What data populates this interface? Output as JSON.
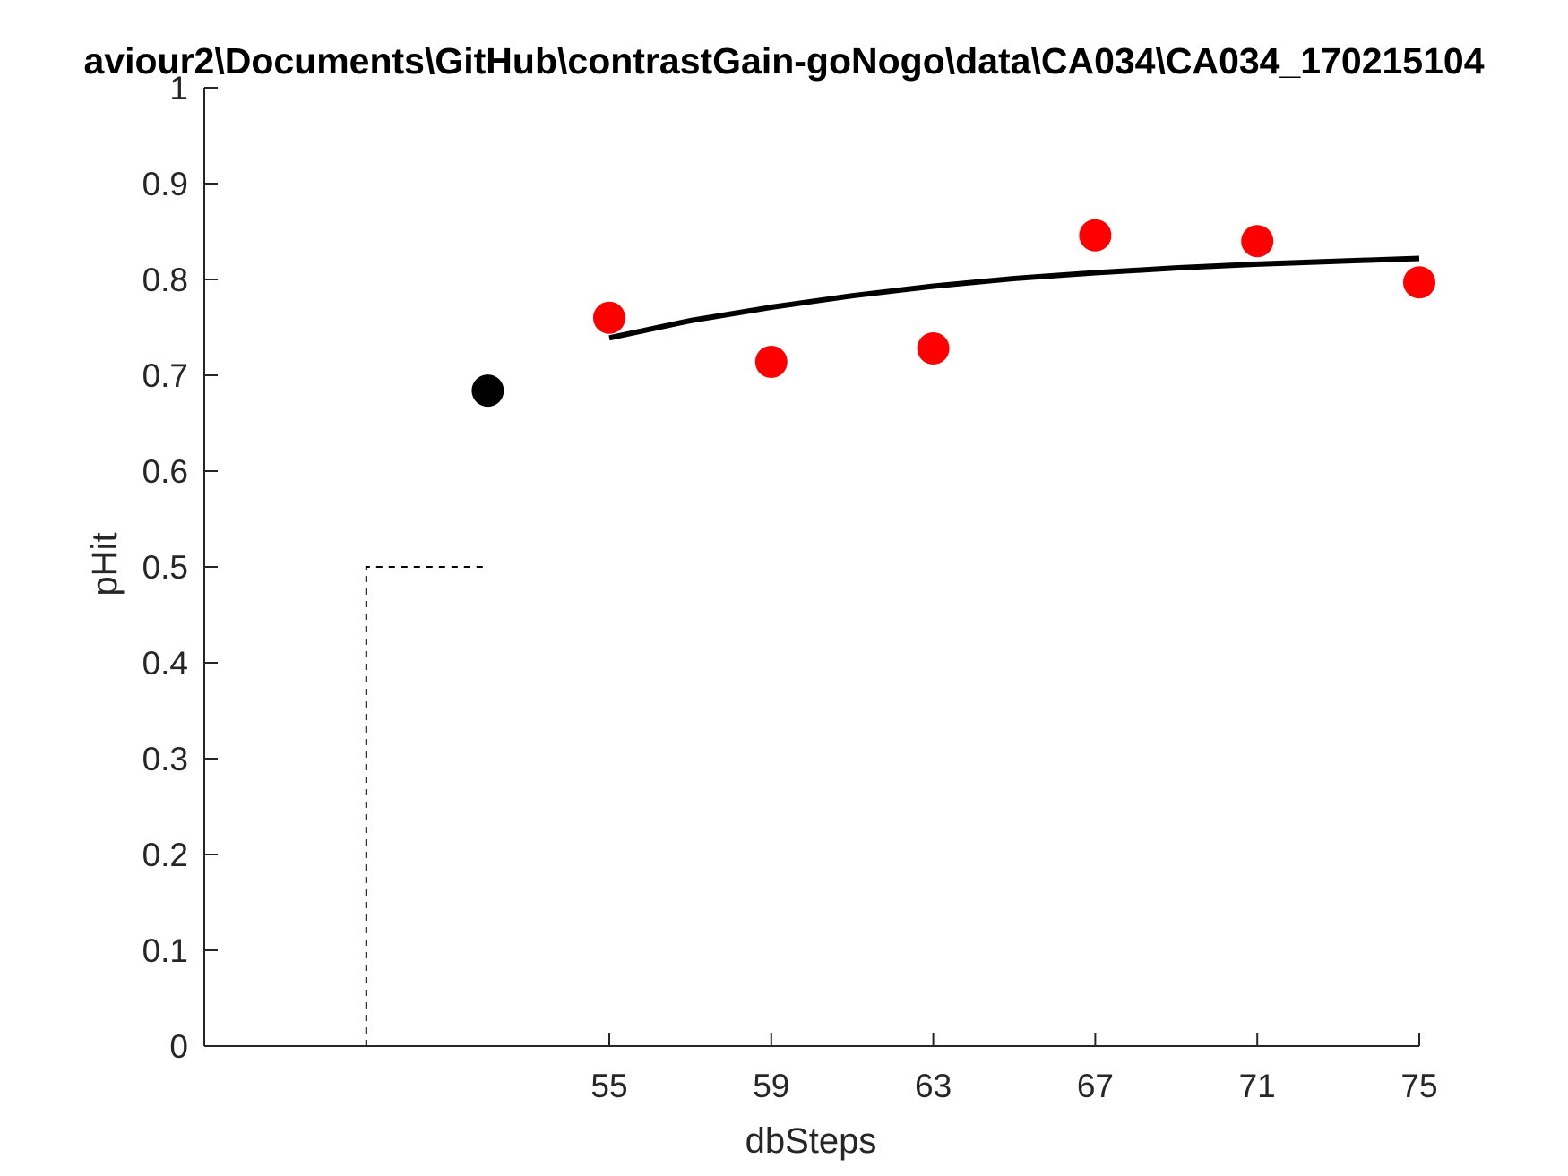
{
  "chart_data": {
    "type": "scatter",
    "title": "aviour2\\Documents\\GitHub\\contrastGain-goNogo\\data\\CA034\\CA034_170215104",
    "xlabel": "dbSteps",
    "ylabel": "pHit",
    "xlim": [
      45,
      75
    ],
    "ylim": [
      0,
      1
    ],
    "xticks": [
      55,
      59,
      63,
      67,
      71,
      75
    ],
    "yticks": [
      0,
      0.1,
      0.2,
      0.3,
      0.4,
      0.5,
      0.6,
      0.7,
      0.8,
      0.9,
      1
    ],
    "ytick_labels": [
      "0",
      "0.1",
      "0.2",
      "0.3",
      "0.4",
      "0.5",
      "0.6",
      "0.7",
      "0.8",
      "0.9",
      "1"
    ],
    "grid": false,
    "legend": "none",
    "series": [
      {
        "kind": "points",
        "color": "#ff0000",
        "x": [
          55,
          59,
          63,
          67,
          71,
          75
        ],
        "y": [
          0.76,
          0.714,
          0.728,
          0.846,
          0.84,
          0.797
        ]
      },
      {
        "kind": "points",
        "color": "#000000",
        "x": [
          52
        ],
        "y": [
          0.684
        ]
      },
      {
        "kind": "line",
        "color": "#000000",
        "x": [
          55,
          57,
          59,
          61,
          63,
          65,
          67,
          69,
          71,
          73,
          75
        ],
        "y": [
          0.739,
          0.757,
          0.771,
          0.783,
          0.793,
          0.801,
          0.807,
          0.812,
          0.816,
          0.819,
          0.822
        ]
      },
      {
        "kind": "dashed",
        "color": "#000000",
        "x": [
          49,
          49,
          52
        ],
        "y": [
          0,
          0.5,
          0.5
        ]
      }
    ]
  }
}
